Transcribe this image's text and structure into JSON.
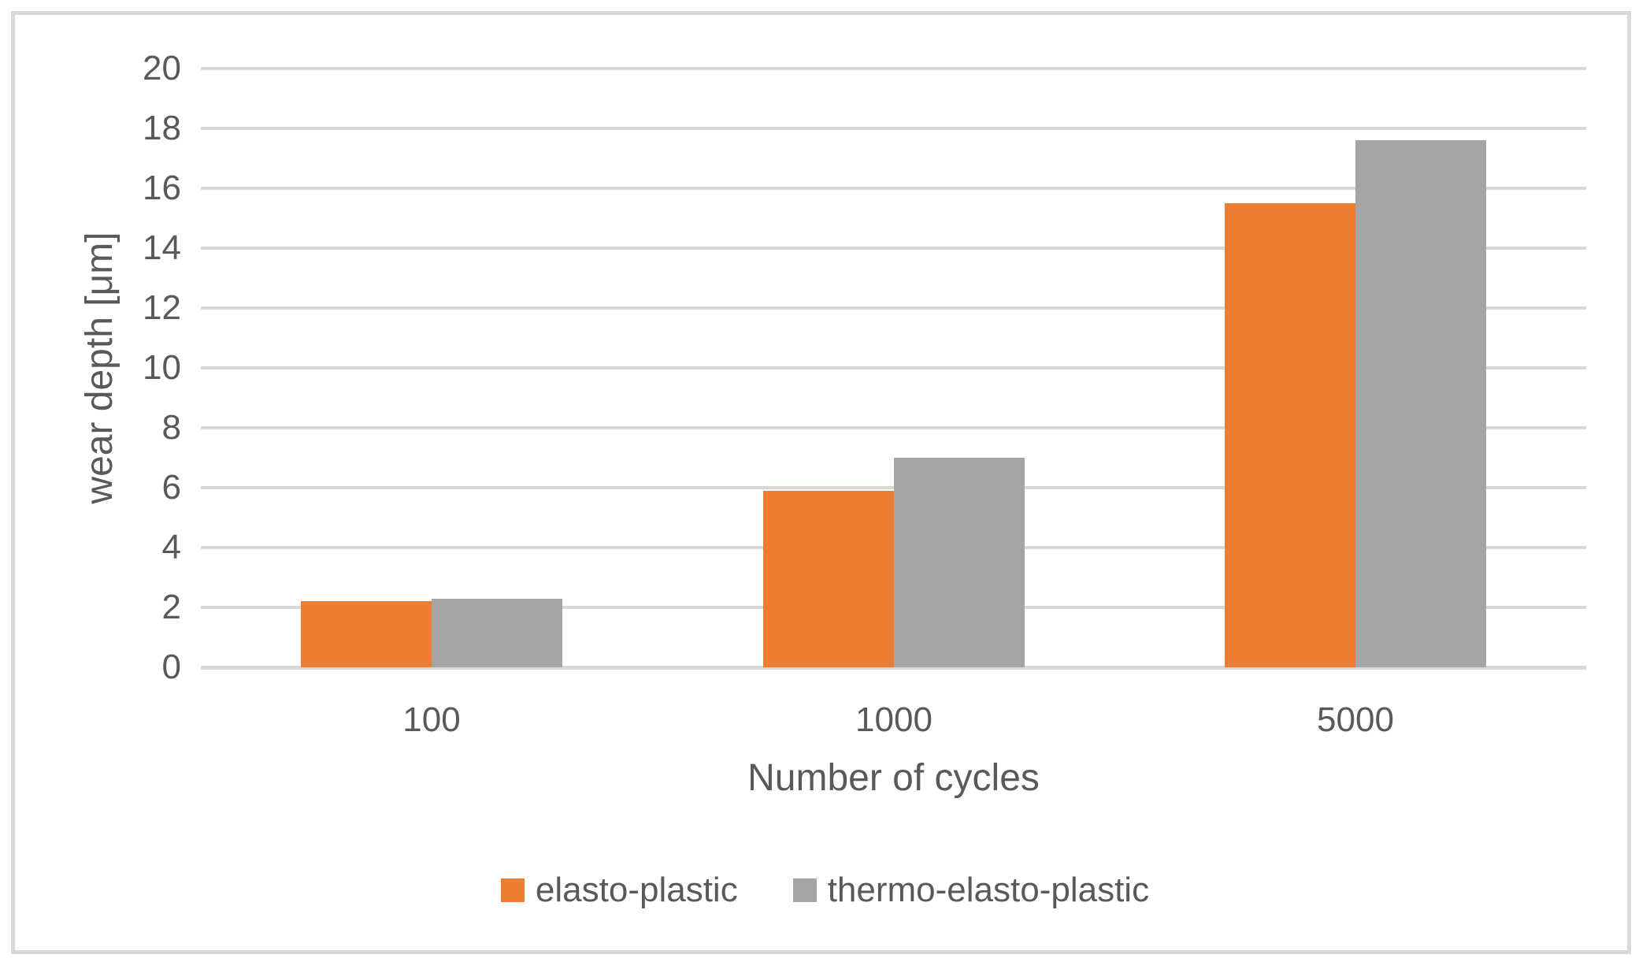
{
  "chart_data": {
    "type": "bar",
    "title": "",
    "categories": [
      "100",
      "1000",
      "5000"
    ],
    "series": [
      {
        "name": "elasto-plastic",
        "color": "#ED7D31",
        "values": [
          2.2,
          5.9,
          15.5
        ]
      },
      {
        "name": "thermo-elasto-plastic",
        "color": "#A5A5A5",
        "values": [
          2.3,
          7.0,
          17.6
        ]
      }
    ],
    "xlabel": "Number of cycles",
    "ylabel": "wear depth [μm]",
    "ylim": [
      0,
      20
    ],
    "ytick_step": 2,
    "yticks": [
      "20",
      "18",
      "16",
      "14",
      "12",
      "10",
      "8",
      "6",
      "4",
      "2",
      "0"
    ],
    "grid": true,
    "legend_position": "bottom",
    "gridline_color": "#D9D9D9",
    "frame_border_color": "#D9D9D9",
    "axis_text_color": "#595959",
    "plot_background": "#FFFFFF"
  }
}
